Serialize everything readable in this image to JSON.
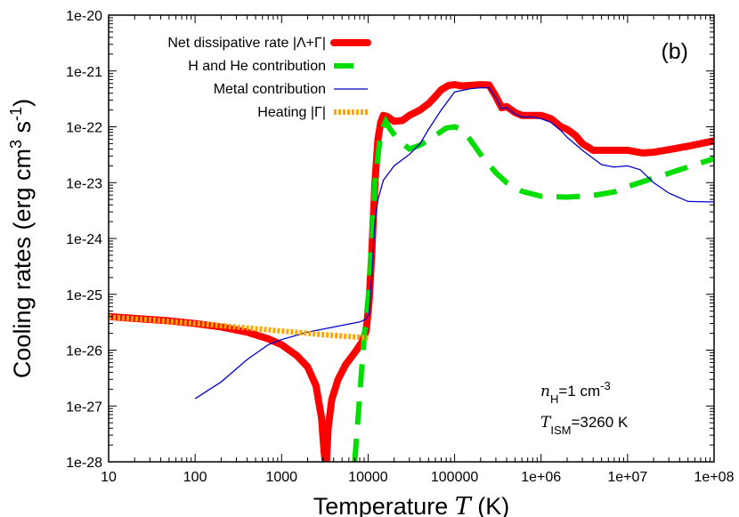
{
  "chart_data": {
    "type": "line",
    "panel_label": "(b)",
    "xlabel": "Temperature T (K)",
    "xlabel_parts": {
      "pre": "Temperature ",
      "var": "T",
      "post": " (K)"
    },
    "ylabel": "Cooling rates (erg cm^3 s^-1)",
    "ylabel_parts": {
      "pre": "Cooling rates (erg cm",
      "sup1": "3",
      "mid": " s",
      "sup2": "-1",
      "post": ")"
    },
    "x_scale": "log",
    "y_scale": "log",
    "xlim": [
      10,
      100000000
    ],
    "ylim": [
      1e-28,
      1e-20
    ],
    "xticks": [
      {
        "value": 10,
        "label": "10"
      },
      {
        "value": 100,
        "label": "100"
      },
      {
        "value": 1000,
        "label": "1000"
      },
      {
        "value": 10000,
        "label": "10000"
      },
      {
        "value": 100000,
        "label": "100000"
      },
      {
        "value": 1000000,
        "label": "1e+06"
      },
      {
        "value": 10000000,
        "label": "1e+07"
      },
      {
        "value": 100000000,
        "label": "1e+08"
      }
    ],
    "yticks": [
      {
        "value": 1e-28,
        "label": "1e-28"
      },
      {
        "value": 1e-27,
        "label": "1e-27"
      },
      {
        "value": 1e-26,
        "label": "1e-26"
      },
      {
        "value": 1e-25,
        "label": "1e-25"
      },
      {
        "value": 1e-24,
        "label": "1e-24"
      },
      {
        "value": 1e-23,
        "label": "1e-23"
      },
      {
        "value": 1e-22,
        "label": "1e-22"
      },
      {
        "value": 1e-21,
        "label": "1e-21"
      },
      {
        "value": 1e-20,
        "label": "1e-20"
      }
    ],
    "legend_position": "top-left",
    "grid": false,
    "annotations": {
      "density": {
        "var": "n",
        "sub": "H",
        "post": "=1 cm",
        "sup": "-3"
      },
      "ism_temp": {
        "var": "T",
        "sub": "ISM",
        "post": "=3260 K"
      }
    },
    "series": [
      {
        "name": "Net dissipative rate |Λ+Γ|",
        "color": "#ff0000",
        "style": "solid-thick",
        "points": [
          [
            10,
            4e-26
          ],
          [
            20,
            3.7e-26
          ],
          [
            50,
            3.35e-26
          ],
          [
            100,
            3e-26
          ],
          [
            200,
            2.6e-26
          ],
          [
            400,
            2.1e-26
          ],
          [
            700,
            1.6e-26
          ],
          [
            1000,
            1.25e-26
          ],
          [
            1500,
            8e-27
          ],
          [
            2000,
            5e-27
          ],
          [
            2500,
            2.3e-27
          ],
          [
            2900,
            6e-28
          ],
          [
            3100,
            1.5e-28
          ],
          [
            3200,
            1e-28
          ],
          [
            3300,
            1e-28
          ],
          [
            3450,
            4e-28
          ],
          [
            3800,
            1.3e-27
          ],
          [
            4500,
            3e-27
          ],
          [
            5500,
            5.5e-27
          ],
          [
            7000,
            9e-27
          ],
          [
            8500,
            1.4e-26
          ],
          [
            9500,
            2.2e-26
          ],
          [
            10300,
            8e-26
          ],
          [
            11000,
            5e-25
          ],
          [
            12000,
            1e-23
          ],
          [
            13000,
            6e-23
          ],
          [
            14000,
            1.2e-22
          ],
          [
            15000,
            1.6e-22
          ],
          [
            17000,
            1.5e-22
          ],
          [
            20000,
            1.25e-22
          ],
          [
            25000,
            1.3e-22
          ],
          [
            30000,
            1.6e-22
          ],
          [
            40000,
            2e-22
          ],
          [
            50000,
            2.6e-22
          ],
          [
            60000,
            3.5e-22
          ],
          [
            70000,
            4.6e-22
          ],
          [
            85000,
            5.5e-22
          ],
          [
            100000,
            5.7e-22
          ],
          [
            120000,
            5.4e-22
          ],
          [
            150000,
            5.5e-22
          ],
          [
            200000,
            5.7e-22
          ],
          [
            250000,
            5.6e-22
          ],
          [
            300000,
            3.5e-22
          ],
          [
            350000,
            2.2e-22
          ],
          [
            400000,
            2.3e-22
          ],
          [
            500000,
            1.8e-22
          ],
          [
            600000,
            1.6e-22
          ],
          [
            800000,
            1.6e-22
          ],
          [
            1000000,
            1.6e-22
          ],
          [
            1300000,
            1.4e-22
          ],
          [
            1700000,
            1e-22
          ],
          [
            2000000,
            9e-23
          ],
          [
            2500000,
            7e-23
          ],
          [
            3000000,
            5e-23
          ],
          [
            4000000,
            3.8e-23
          ],
          [
            6000000,
            3.8e-23
          ],
          [
            8000000,
            3.8e-23
          ],
          [
            10000000,
            3.8e-23
          ],
          [
            12000000,
            3.6e-23
          ],
          [
            15000000,
            3.4e-23
          ],
          [
            20000000,
            3.5e-23
          ],
          [
            30000000,
            3.9e-23
          ],
          [
            50000000,
            4.5e-23
          ],
          [
            100000000,
            5.6e-23
          ]
        ]
      },
      {
        "name": "H and He contribution",
        "color": "#00dd00",
        "style": "dashed",
        "points": [
          [
            7000,
            1e-28
          ],
          [
            8000,
            1.5e-27
          ],
          [
            9000,
            1.8e-26
          ],
          [
            10000,
            8e-26
          ],
          [
            11000,
            8e-25
          ],
          [
            12000,
            1e-23
          ],
          [
            14000,
            8e-23
          ],
          [
            16000,
            1.25e-22
          ],
          [
            18000,
            9e-23
          ],
          [
            22000,
            6e-23
          ],
          [
            30000,
            4e-23
          ],
          [
            40000,
            4.7e-23
          ],
          [
            60000,
            7e-23
          ],
          [
            80000,
            9.5e-23
          ],
          [
            100000,
            1e-22
          ],
          [
            120000,
            9e-23
          ],
          [
            150000,
            6e-23
          ],
          [
            200000,
            3.2e-23
          ],
          [
            300000,
            1.5e-23
          ],
          [
            400000,
            1e-23
          ],
          [
            600000,
            7e-24
          ],
          [
            1000000,
            5.7e-24
          ],
          [
            2000000,
            5.5e-24
          ],
          [
            4000000,
            5.9e-24
          ],
          [
            7000000,
            6.8e-24
          ],
          [
            10000000,
            8.5e-24
          ],
          [
            20000000,
            1.2e-23
          ],
          [
            40000000,
            1.7e-23
          ],
          [
            100000000,
            2.7e-23
          ]
        ]
      },
      {
        "name": "Metal contribution",
        "color": "#0000cc",
        "style": "solid-thin",
        "points": [
          [
            100,
            1.35e-27
          ],
          [
            200,
            2.7e-27
          ],
          [
            400,
            6.8e-27
          ],
          [
            700,
            1.25e-26
          ],
          [
            1000,
            1.55e-26
          ],
          [
            2000,
            2.1e-26
          ],
          [
            4000,
            2.6e-26
          ],
          [
            8000,
            3.2e-26
          ],
          [
            9500,
            3.6e-26
          ],
          [
            10300,
            4.5e-26
          ],
          [
            11000,
            2e-25
          ],
          [
            12000,
            2e-24
          ],
          [
            13000,
            5e-24
          ],
          [
            15000,
            1.1e-23
          ],
          [
            20000,
            2e-23
          ],
          [
            30000,
            3.2e-23
          ],
          [
            40000,
            5e-23
          ],
          [
            50000,
            9e-23
          ],
          [
            70000,
            2e-22
          ],
          [
            100000,
            4.2e-22
          ],
          [
            150000,
            4.8e-22
          ],
          [
            200000,
            5e-22
          ],
          [
            250000,
            5e-22
          ],
          [
            300000,
            3.3e-22
          ],
          [
            350000,
            2.1e-22
          ],
          [
            400000,
            2.2e-22
          ],
          [
            500000,
            1.7e-22
          ],
          [
            600000,
            1.5e-22
          ],
          [
            800000,
            1.5e-22
          ],
          [
            1000000,
            1.4e-22
          ],
          [
            1300000,
            1.2e-22
          ],
          [
            1700000,
            8.5e-23
          ],
          [
            2000000,
            6.5e-23
          ],
          [
            3000000,
            3.8e-23
          ],
          [
            5000000,
            2.1e-23
          ],
          [
            7000000,
            1.9e-23
          ],
          [
            10000000,
            2e-23
          ],
          [
            14000000,
            1.7e-23
          ],
          [
            20000000,
            1e-23
          ],
          [
            30000000,
            6.5e-24
          ],
          [
            50000000,
            4.6e-24
          ],
          [
            100000000,
            4.5e-24
          ]
        ]
      },
      {
        "name": "Heating |Γ|",
        "color": "#ffa500",
        "style": "dotted",
        "points": [
          [
            10,
            3.9e-26
          ],
          [
            30,
            3.5e-26
          ],
          [
            100,
            3e-26
          ],
          [
            300,
            2.6e-26
          ],
          [
            1000,
            2.2e-26
          ],
          [
            3000,
            1.9e-26
          ],
          [
            8000,
            1.7e-26
          ],
          [
            10000,
            1.65e-26
          ]
        ]
      }
    ]
  }
}
